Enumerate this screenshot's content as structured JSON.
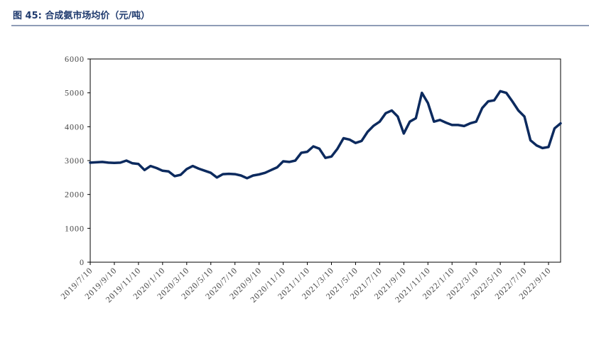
{
  "chart_data": {
    "type": "line",
    "title": "图 45:  合成氨市场均价（元/吨）",
    "categories": [
      "2019/7/10",
      null,
      null,
      null,
      "2019/9/10",
      null,
      null,
      null,
      "2019/11/10",
      null,
      null,
      null,
      "2020/1/10",
      null,
      null,
      null,
      "2020/3/10",
      null,
      null,
      null,
      "2020/5/10",
      null,
      null,
      null,
      "2020/7/10",
      null,
      null,
      null,
      "2020/9/10",
      null,
      null,
      null,
      "2020/11/10",
      null,
      null,
      null,
      "2021/1/10",
      null,
      null,
      null,
      "2021/3/10",
      null,
      null,
      null,
      "2021/5/10",
      null,
      null,
      null,
      "2021/7/10",
      null,
      null,
      null,
      "2021/9/10",
      null,
      null,
      null,
      "2021/11/10",
      null,
      null,
      null,
      "2022/1/10",
      null,
      null,
      null,
      "2022/3/10",
      null,
      null,
      null,
      "2022/5/10",
      null,
      null,
      null,
      "2022/7/10",
      null,
      null,
      null,
      "2022/9/10",
      null,
      null
    ],
    "series": [
      {
        "name": "合成氨市场均价",
        "color": "#0c2a5e",
        "values": [
          2940,
          2950,
          2960,
          2940,
          2930,
          2940,
          3000,
          2920,
          2900,
          2720,
          2840,
          2780,
          2700,
          2680,
          2540,
          2580,
          2750,
          2840,
          2760,
          2700,
          2640,
          2500,
          2600,
          2610,
          2600,
          2560,
          2480,
          2560,
          2590,
          2640,
          2720,
          2800,
          2980,
          2960,
          3000,
          3230,
          3260,
          3420,
          3350,
          3080,
          3120,
          3350,
          3660,
          3620,
          3520,
          3580,
          3850,
          4030,
          4150,
          4400,
          4480,
          4300,
          3800,
          4150,
          4250,
          5000,
          4700,
          4150,
          4200,
          4120,
          4050,
          4050,
          4020,
          4100,
          4150,
          4550,
          4750,
          4780,
          5050,
          5000,
          4750,
          4480,
          4300,
          3600,
          3450,
          3370,
          3400,
          3950,
          4100
        ]
      }
    ],
    "ylim": [
      0,
      6000
    ],
    "yticks": [
      0,
      1000,
      2000,
      3000,
      4000,
      5000,
      6000
    ]
  }
}
